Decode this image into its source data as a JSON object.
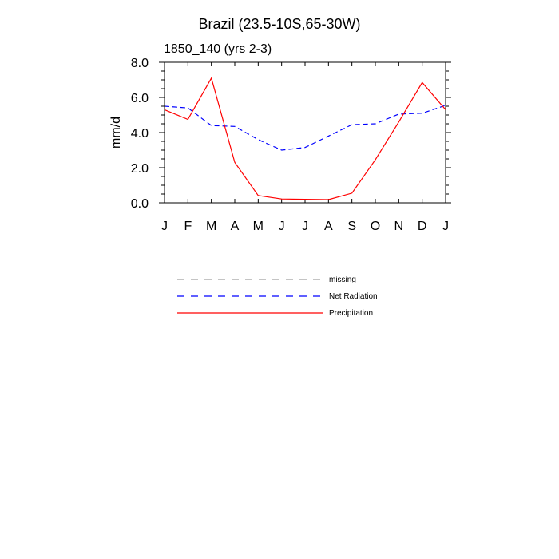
{
  "chart_data": {
    "type": "line",
    "title": "Brazil (23.5-10S,65-30W)",
    "subtitle": "1850_140 (yrs 2-3)",
    "xlabel": "",
    "ylabel": "mm/d",
    "categories": [
      "J",
      "F",
      "M",
      "A",
      "M",
      "J",
      "J",
      "A",
      "S",
      "O",
      "N",
      "D",
      "J"
    ],
    "ylim": [
      0,
      8
    ],
    "yticks": [
      0,
      2,
      4,
      6,
      8
    ],
    "ytick_labels": [
      "0.0",
      "2.0",
      "4.0",
      "6.0",
      "8.0"
    ],
    "series": [
      {
        "name": "Net Radiation",
        "color": "#0000ff",
        "style": "dashed",
        "values": [
          5.5,
          5.4,
          4.4,
          4.35,
          3.6,
          3.0,
          3.15,
          3.8,
          4.45,
          4.5,
          5.05,
          5.1,
          5.55
        ]
      },
      {
        "name": "Precipitation",
        "color": "#ff0000",
        "style": "solid",
        "values": [
          5.3,
          4.75,
          7.1,
          2.3,
          0.42,
          0.22,
          0.2,
          0.18,
          0.55,
          2.45,
          4.6,
          6.85,
          5.3
        ]
      }
    ],
    "legend": [
      {
        "label": "missing",
        "color": "#a0a0a0",
        "style": "dashed"
      },
      {
        "label": "Net Radiation",
        "color": "#0000ff",
        "style": "dashed"
      },
      {
        "label": "Precipitation",
        "color": "#ff0000",
        "style": "solid"
      }
    ]
  }
}
